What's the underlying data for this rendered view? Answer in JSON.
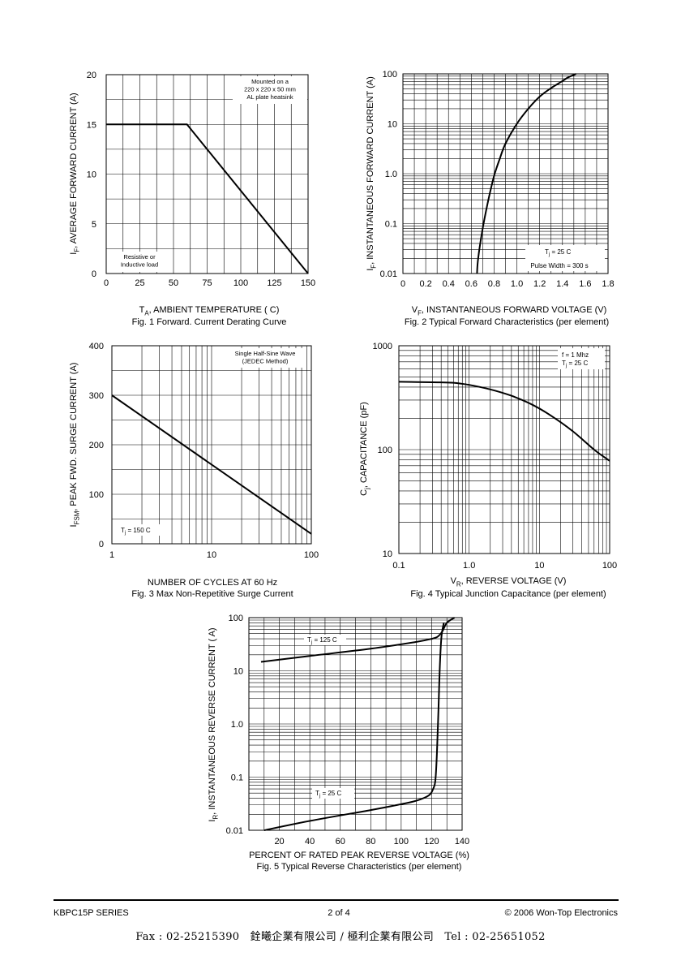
{
  "chart_data": [
    {
      "type": "line",
      "id": "fig1",
      "caption": "Fig. 1  Forward. Current Derating Curve",
      "xlabel_prefix": "T",
      "xlabel_sub": "A",
      "xlabel_rest": ", AMBIENT TEMPERATURE ( C)",
      "ylabel_prefix": "I",
      "ylabel_sub": "F",
      "ylabel_rest": ", AVERAGE FORWARD CURRENT (A)",
      "xlim": [
        0,
        150
      ],
      "ylim": [
        0,
        20
      ],
      "x_ticks": [
        "0",
        "25",
        "50",
        "75",
        "100",
        "125",
        "150"
      ],
      "y_ticks": [
        "0",
        "5",
        "10",
        "15",
        "20"
      ],
      "annotation_top_right": [
        "Mounted on a",
        "220 x 220 x 50 mm",
        "AL plate heatsink"
      ],
      "annotation_bottom_left": [
        "Resistive or",
        "Inductive load"
      ],
      "series": [
        {
          "x": [
            0,
            60,
            150
          ],
          "y": [
            15,
            15,
            0
          ]
        }
      ]
    },
    {
      "type": "line",
      "id": "fig2",
      "caption": "Fig. 2  Typical Forward Characteristics (per element)",
      "xlabel_prefix": "V",
      "xlabel_sub": "F",
      "xlabel_rest": ", INSTANTANEOUS FORWARD VOLTAGE (V)",
      "ylabel_prefix": "I",
      "ylabel_sub": "F",
      "ylabel_rest": ", INSTANTANEOUS FORWARD CURRENT (A)",
      "xlim": [
        0,
        1.8
      ],
      "ylim": [
        0.01,
        100
      ],
      "yscale": "log",
      "x_ticks": [
        "0",
        "0.2",
        "0.4",
        "0.6",
        "0.8",
        "1.0",
        "1.2",
        "1.4",
        "1.6",
        "1.8"
      ],
      "y_ticks": [
        "0.01",
        "0.1",
        "1.0",
        "10",
        "100"
      ],
      "annotation_tj": "T  = 25 C",
      "annotation_pulse": "Pulse Width = 300  s",
      "series": [
        {
          "x": [
            0.65,
            0.66,
            0.7,
            0.75,
            0.8,
            0.85,
            0.9,
            1.0,
            1.1,
            1.2,
            1.3,
            1.4,
            1.45,
            1.52
          ],
          "y": [
            0.01,
            0.02,
            0.08,
            0.3,
            0.9,
            2.0,
            4.0,
            10,
            20,
            35,
            52,
            72,
            85,
            100
          ]
        }
      ]
    },
    {
      "type": "line",
      "id": "fig3",
      "caption": "Fig. 3  Max Non-Repetitive Surge Current",
      "xlabel": "NUMBER OF CYCLES AT 60 Hz",
      "ylabel_prefix": "I",
      "ylabel_sub": "FSM",
      "ylabel_rest": ", PEAK FWD. SURGE CURRENT (A)",
      "xlim": [
        1,
        100
      ],
      "xscale": "log",
      "ylim": [
        0,
        400
      ],
      "x_ticks": [
        "1",
        "10",
        "100"
      ],
      "y_ticks": [
        "0",
        "100",
        "200",
        "300",
        "400"
      ],
      "annotation_top_right": [
        "Single Half-Sine Wave",
        "(JEDEC Method)"
      ],
      "annotation_tj": "T  = 150 C",
      "series": [
        {
          "x": [
            1,
            100
          ],
          "y": [
            300,
            20
          ]
        }
      ]
    },
    {
      "type": "line",
      "id": "fig4",
      "caption": "Fig. 4  Typical Junction Capacitance (per element)",
      "xlabel_prefix": "V",
      "xlabel_sub": "R",
      "xlabel_rest": ", REVERSE VOLTAGE (V)",
      "ylabel_prefix": "C",
      "ylabel_sub": "j",
      "ylabel_rest": ", CAPACITANCE (pF)",
      "xlim": [
        0.1,
        100
      ],
      "xscale": "log",
      "ylim": [
        10,
        1000
      ],
      "yscale": "log",
      "x_ticks": [
        "0.1",
        "1.0",
        "10",
        "100"
      ],
      "y_ticks": [
        "10",
        "100",
        "1000"
      ],
      "annotation_f": "f = 1 Mhz",
      "annotation_tj": "T  = 25 C",
      "series": [
        {
          "x": [
            0.1,
            0.3,
            0.6,
            1,
            2,
            4,
            8,
            15,
            30,
            60,
            100
          ],
          "y": [
            450,
            445,
            440,
            420,
            380,
            330,
            270,
            210,
            150,
            100,
            78
          ]
        }
      ]
    },
    {
      "type": "line",
      "id": "fig5",
      "caption": "Fig. 5  Typical Reverse Characteristics (per element)",
      "xlabel": "PERCENT OF RATED PEAK  REVERSE VOLTAGE (%)",
      "ylabel_prefix": "I",
      "ylabel_sub": "R",
      "ylabel_rest": ", INSTANTANEOUS REVERSE CURRENT (  A)",
      "xlim": [
        0,
        140
      ],
      "ylim": [
        0.01,
        100
      ],
      "yscale": "log",
      "x_ticks": [
        "20",
        "40",
        "60",
        "80",
        "100",
        "120",
        "140"
      ],
      "y_ticks": [
        "0.01",
        "0.1",
        "1.0",
        "10",
        "100"
      ],
      "series": [
        {
          "name": "T  = 125 C",
          "x": [
            8,
            40,
            80,
            110,
            120,
            124,
            127,
            130,
            135
          ],
          "y": [
            14.7,
            19,
            26,
            35,
            40,
            44,
            55,
            80,
            100
          ]
        },
        {
          "name": "T  = 25 C",
          "x": [
            10,
            40,
            80,
            100,
            110,
            118,
            121,
            122.5,
            123.5,
            124.5,
            125.5,
            126.5,
            128
          ],
          "y": [
            0.01,
            0.015,
            0.024,
            0.031,
            0.036,
            0.045,
            0.06,
            0.09,
            0.3,
            2,
            15,
            45,
            80
          ]
        }
      ]
    }
  ],
  "footer": {
    "series_name": "KBPC15P SERIES",
    "page": "2 of 4",
    "copyright": "© 2006 Won-Top Electronics",
    "fax_line": "Fax : 02-25215390   銓曦企業有限公司 / 極利企業有限公司   Tel : 02-25651052"
  }
}
